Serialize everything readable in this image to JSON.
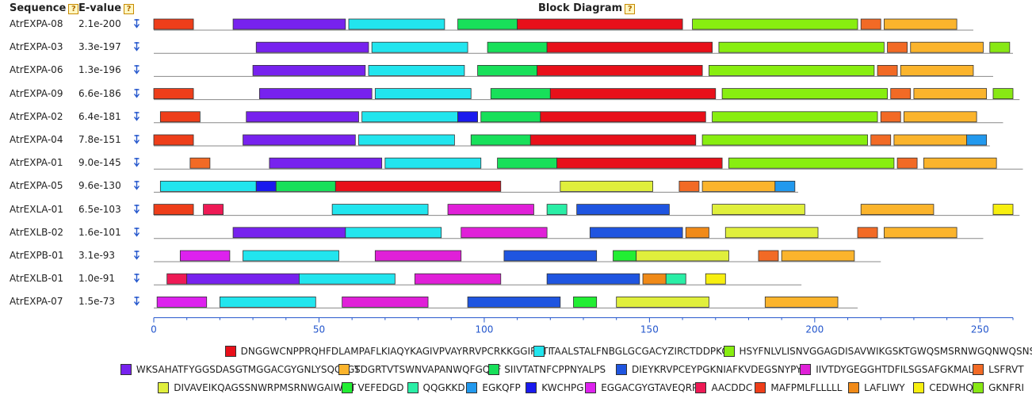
{
  "header": {
    "sequence_label": "Sequence",
    "evalue_label": "E-value",
    "diagram_label": "Block Diagram",
    "help_glyph": "?"
  },
  "axis": {
    "min": 0,
    "max": 260,
    "ticks": [
      0,
      50,
      100,
      150,
      200,
      250
    ],
    "minor_step": 10,
    "color": "#2255cc"
  },
  "sort_icon": "sort-down-arrow-icon",
  "motifs": {
    "m1": {
      "color": "#e8101a",
      "label": "DNGGWCNPPRQHFDLAMPAFLKIAQYKAGIVPVAYRRVPCRKKGGIRFTI"
    },
    "m2": {
      "color": "#22e5ee",
      "label": "TAALSTALFNBGLGCGACYZIRCTDDPKC"
    },
    "m3": {
      "color": "#88ee10",
      "label": "HSYFNLVLISNVGGAGDISAVWIKGSKTGWQSMSRNWGQNWQSNSYLNGQ"
    },
    "m4": {
      "color": "#7722ee",
      "label": "WKSAHATFYGGSDASGTMGGACGYGNLYSQGYGT"
    },
    "m5": {
      "color": "#fbb42c",
      "label": "SDGRTVTSWNVAPANWQFGQTF"
    },
    "m6": {
      "color": "#18e05a",
      "label": "SIIVTATNFCPPNYALPS"
    },
    "m7": {
      "color": "#1f55e0",
      "label": "DIEYKRVPCEYPGKNIAFKVDEGSNYPY"
    },
    "m8": {
      "color": "#e020d8",
      "label": "IIVTDYGEGGHTDFILSGSAFGKMAL"
    },
    "m9": {
      "color": "#f26a25",
      "label": "LSFRVT"
    },
    "m10": {
      "color": "#e0ef3c",
      "label": "DIVAVEIKQAGSSNWRPMSRNWGAIWDT"
    },
    "m11": {
      "color": "#22ee33",
      "label": "VEFEDGD"
    },
    "m12": {
      "color": "#2aeea6",
      "label": "QQGKKD"
    },
    "m13": {
      "color": "#2299ee",
      "label": "EGKQFP"
    },
    "m14": {
      "color": "#1a1aee",
      "label": "KWCHPG"
    },
    "m15": {
      "color": "#dd22ee",
      "label": "EGGACGYGTAVEQRP"
    },
    "m16": {
      "color": "#ee1a55",
      "label": "AACDDC"
    },
    "m17": {
      "color": "#ee3e1a",
      "label": "MAFPMLFLLLLL"
    },
    "m18": {
      "color": "#f08a18",
      "label": "LAFLIWY"
    },
    "m19": {
      "color": "#f7ef10",
      "label": "CEDWHQ"
    },
    "m20": {
      "color": "#88e814",
      "label": "GKNFRI"
    }
  },
  "legend_rows": [
    [
      "m1",
      "m2",
      "m3"
    ],
    [
      "m4",
      "m5",
      "m6",
      "m7",
      "m8",
      "m9"
    ],
    [
      "m10",
      "m11",
      "m12",
      "m13",
      "m14",
      "m15",
      "m16",
      "m17",
      "m18",
      "m19",
      "m20"
    ]
  ],
  "sequences": [
    {
      "name": "AtrEXPA-08",
      "evalue": "2.1e-200",
      "length": 248,
      "blocks": [
        [
          0,
          12,
          "m17"
        ],
        [
          24,
          58,
          "m4"
        ],
        [
          59,
          88,
          "m2"
        ],
        [
          92,
          110,
          "m6"
        ],
        [
          110,
          160,
          "m1"
        ],
        [
          163,
          213,
          "m3"
        ],
        [
          214,
          220,
          "m9"
        ],
        [
          221,
          243,
          "m5"
        ]
      ]
    },
    {
      "name": "AtrEXPA-03",
      "evalue": "3.3e-197",
      "length": 260,
      "blocks": [
        [
          31,
          65,
          "m4"
        ],
        [
          66,
          95,
          "m2"
        ],
        [
          101,
          119,
          "m6"
        ],
        [
          119,
          169,
          "m1"
        ],
        [
          171,
          221,
          "m3"
        ],
        [
          222,
          228,
          "m9"
        ],
        [
          229,
          251,
          "m5"
        ],
        [
          253,
          259,
          "m20"
        ]
      ]
    },
    {
      "name": "AtrEXPA-06",
      "evalue": "1.3e-196",
      "length": 254,
      "blocks": [
        [
          30,
          64,
          "m4"
        ],
        [
          65,
          94,
          "m2"
        ],
        [
          98,
          116,
          "m6"
        ],
        [
          116,
          166,
          "m1"
        ],
        [
          168,
          218,
          "m3"
        ],
        [
          219,
          225,
          "m9"
        ],
        [
          226,
          248,
          "m5"
        ]
      ]
    },
    {
      "name": "AtrEXPA-09",
      "evalue": "6.6e-186",
      "length": 262,
      "blocks": [
        [
          0,
          12,
          "m17"
        ],
        [
          32,
          66,
          "m4"
        ],
        [
          67,
          96,
          "m2"
        ],
        [
          102,
          120,
          "m6"
        ],
        [
          120,
          170,
          "m1"
        ],
        [
          172,
          222,
          "m3"
        ],
        [
          223,
          229,
          "m9"
        ],
        [
          230,
          252,
          "m5"
        ],
        [
          254,
          260,
          "m20"
        ]
      ]
    },
    {
      "name": "AtrEXPA-02",
      "evalue": "6.4e-181",
      "length": 257,
      "blocks": [
        [
          2,
          14,
          "m17"
        ],
        [
          28,
          62,
          "m4"
        ],
        [
          63,
          92,
          "m2"
        ],
        [
          92,
          98,
          "m14"
        ],
        [
          99,
          117,
          "m6"
        ],
        [
          117,
          167,
          "m1"
        ],
        [
          169,
          219,
          "m3"
        ],
        [
          220,
          226,
          "m9"
        ],
        [
          227,
          249,
          "m5"
        ]
      ]
    },
    {
      "name": "AtrEXPA-04",
      "evalue": "7.8e-151",
      "length": 253,
      "blocks": [
        [
          0,
          12,
          "m17"
        ],
        [
          27,
          61,
          "m4"
        ],
        [
          62,
          91,
          "m2"
        ],
        [
          96,
          114,
          "m6"
        ],
        [
          114,
          164,
          "m1"
        ],
        [
          166,
          216,
          "m3"
        ],
        [
          217,
          223,
          "m9"
        ],
        [
          224,
          246,
          "m5"
        ],
        [
          246,
          252,
          "m13"
        ]
      ]
    },
    {
      "name": "AtrEXPA-01",
      "evalue": "9.0e-145",
      "length": 263,
      "blocks": [
        [
          11,
          17,
          "m9"
        ],
        [
          35,
          69,
          "m4"
        ],
        [
          70,
          99,
          "m2"
        ],
        [
          104,
          122,
          "m6"
        ],
        [
          122,
          172,
          "m1"
        ],
        [
          174,
          224,
          "m3"
        ],
        [
          225,
          231,
          "m9"
        ],
        [
          233,
          255,
          "m5"
        ]
      ]
    },
    {
      "name": "AtrEXPA-05",
      "evalue": "9.6e-130",
      "length": 195,
      "blocks": [
        [
          2,
          31,
          "m2"
        ],
        [
          31,
          37,
          "m14"
        ],
        [
          37,
          55,
          "m6"
        ],
        [
          55,
          105,
          "m1"
        ],
        [
          123,
          151,
          "m10"
        ],
        [
          159,
          165,
          "m9"
        ],
        [
          166,
          188,
          "m5"
        ],
        [
          188,
          194,
          "m13"
        ]
      ]
    },
    {
      "name": "AtrEXLA-01",
      "evalue": "6.5e-103",
      "length": 262,
      "blocks": [
        [
          0,
          12,
          "m17"
        ],
        [
          15,
          21,
          "m16"
        ],
        [
          54,
          83,
          "m2"
        ],
        [
          89,
          115,
          "m8"
        ],
        [
          119,
          125,
          "m12"
        ],
        [
          128,
          156,
          "m7"
        ],
        [
          169,
          197,
          "m10"
        ],
        [
          214,
          236,
          "m5"
        ],
        [
          254,
          260,
          "m19"
        ]
      ]
    },
    {
      "name": "AtrEXLB-02",
      "evalue": "1.6e-101",
      "length": 251,
      "blocks": [
        [
          24,
          58,
          "m4"
        ],
        [
          58,
          87,
          "m2"
        ],
        [
          93,
          119,
          "m8"
        ],
        [
          132,
          160,
          "m7"
        ],
        [
          161,
          168,
          "m18"
        ],
        [
          173,
          201,
          "m10"
        ],
        [
          213,
          219,
          "m9"
        ],
        [
          221,
          243,
          "m5"
        ]
      ]
    },
    {
      "name": "AtrEXPB-01",
      "evalue": "3.1e-93",
      "length": 220,
      "blocks": [
        [
          8,
          23,
          "m15"
        ],
        [
          27,
          56,
          "m2"
        ],
        [
          67,
          93,
          "m8"
        ],
        [
          106,
          134,
          "m7"
        ],
        [
          139,
          146,
          "m11"
        ],
        [
          146,
          174,
          "m10"
        ],
        [
          183,
          189,
          "m9"
        ],
        [
          190,
          212,
          "m5"
        ]
      ]
    },
    {
      "name": "AtrEXLB-01",
      "evalue": "1.0e-91",
      "length": 196,
      "blocks": [
        [
          4,
          10,
          "m16"
        ],
        [
          10,
          44,
          "m4"
        ],
        [
          44,
          73,
          "m2"
        ],
        [
          79,
          105,
          "m8"
        ],
        [
          119,
          147,
          "m7"
        ],
        [
          148,
          155,
          "m18"
        ],
        [
          155,
          161,
          "m12"
        ],
        [
          167,
          173,
          "m19"
        ]
      ]
    },
    {
      "name": "AtrEXPA-07",
      "evalue": "1.5e-73",
      "length": 213,
      "blocks": [
        [
          1,
          16,
          "m15"
        ],
        [
          20,
          49,
          "m2"
        ],
        [
          57,
          83,
          "m8"
        ],
        [
          95,
          123,
          "m7"
        ],
        [
          127,
          134,
          "m11"
        ],
        [
          140,
          168,
          "m10"
        ],
        [
          185,
          207,
          "m5"
        ]
      ]
    }
  ]
}
